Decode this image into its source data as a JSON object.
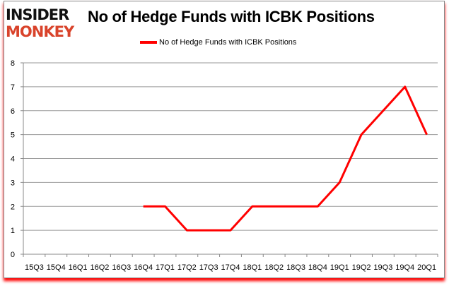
{
  "logo": {
    "line1": "INSIDER",
    "line2": "MONKEY",
    "colors": {
      "line1": "#111111",
      "line2": "#d9432b"
    }
  },
  "chart_data": {
    "type": "line",
    "title": "No of Hedge Funds with ICBK Positions",
    "categories": [
      "15Q3",
      "15Q4",
      "16Q1",
      "16Q2",
      "16Q3",
      "16Q4",
      "17Q1",
      "17Q2",
      "17Q3",
      "17Q4",
      "18Q1",
      "18Q2",
      "18Q3",
      "18Q4",
      "19Q1",
      "19Q2",
      "19Q3",
      "19Q4",
      "20Q1"
    ],
    "series": [
      {
        "name": "No of Hedge Funds with ICBK Positions",
        "color": "#ff0000",
        "values": [
          null,
          null,
          null,
          null,
          null,
          2,
          2,
          1,
          1,
          1,
          2,
          2,
          2,
          2,
          3,
          5,
          6,
          7,
          5
        ]
      }
    ],
    "ylim": [
      0,
      8
    ],
    "yticks": [
      0,
      1,
      2,
      3,
      4,
      5,
      6,
      7,
      8
    ],
    "grid": true,
    "legend": "top-center",
    "xlabel": "",
    "ylabel": ""
  }
}
